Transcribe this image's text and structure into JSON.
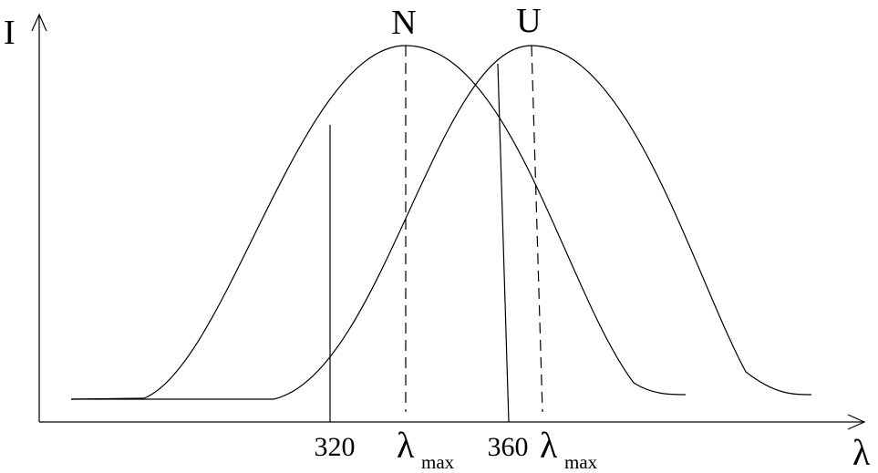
{
  "axes": {
    "y_label": "I",
    "x_label": "λ"
  },
  "curves": [
    {
      "label": "N",
      "peak_label": {
        "symbol": "λ",
        "subscript": "max"
      }
    },
    {
      "label": "U",
      "peak_label": {
        "symbol": "λ",
        "subscript": "max"
      }
    }
  ],
  "markers": [
    {
      "label": "320"
    },
    {
      "label": "360"
    }
  ]
}
